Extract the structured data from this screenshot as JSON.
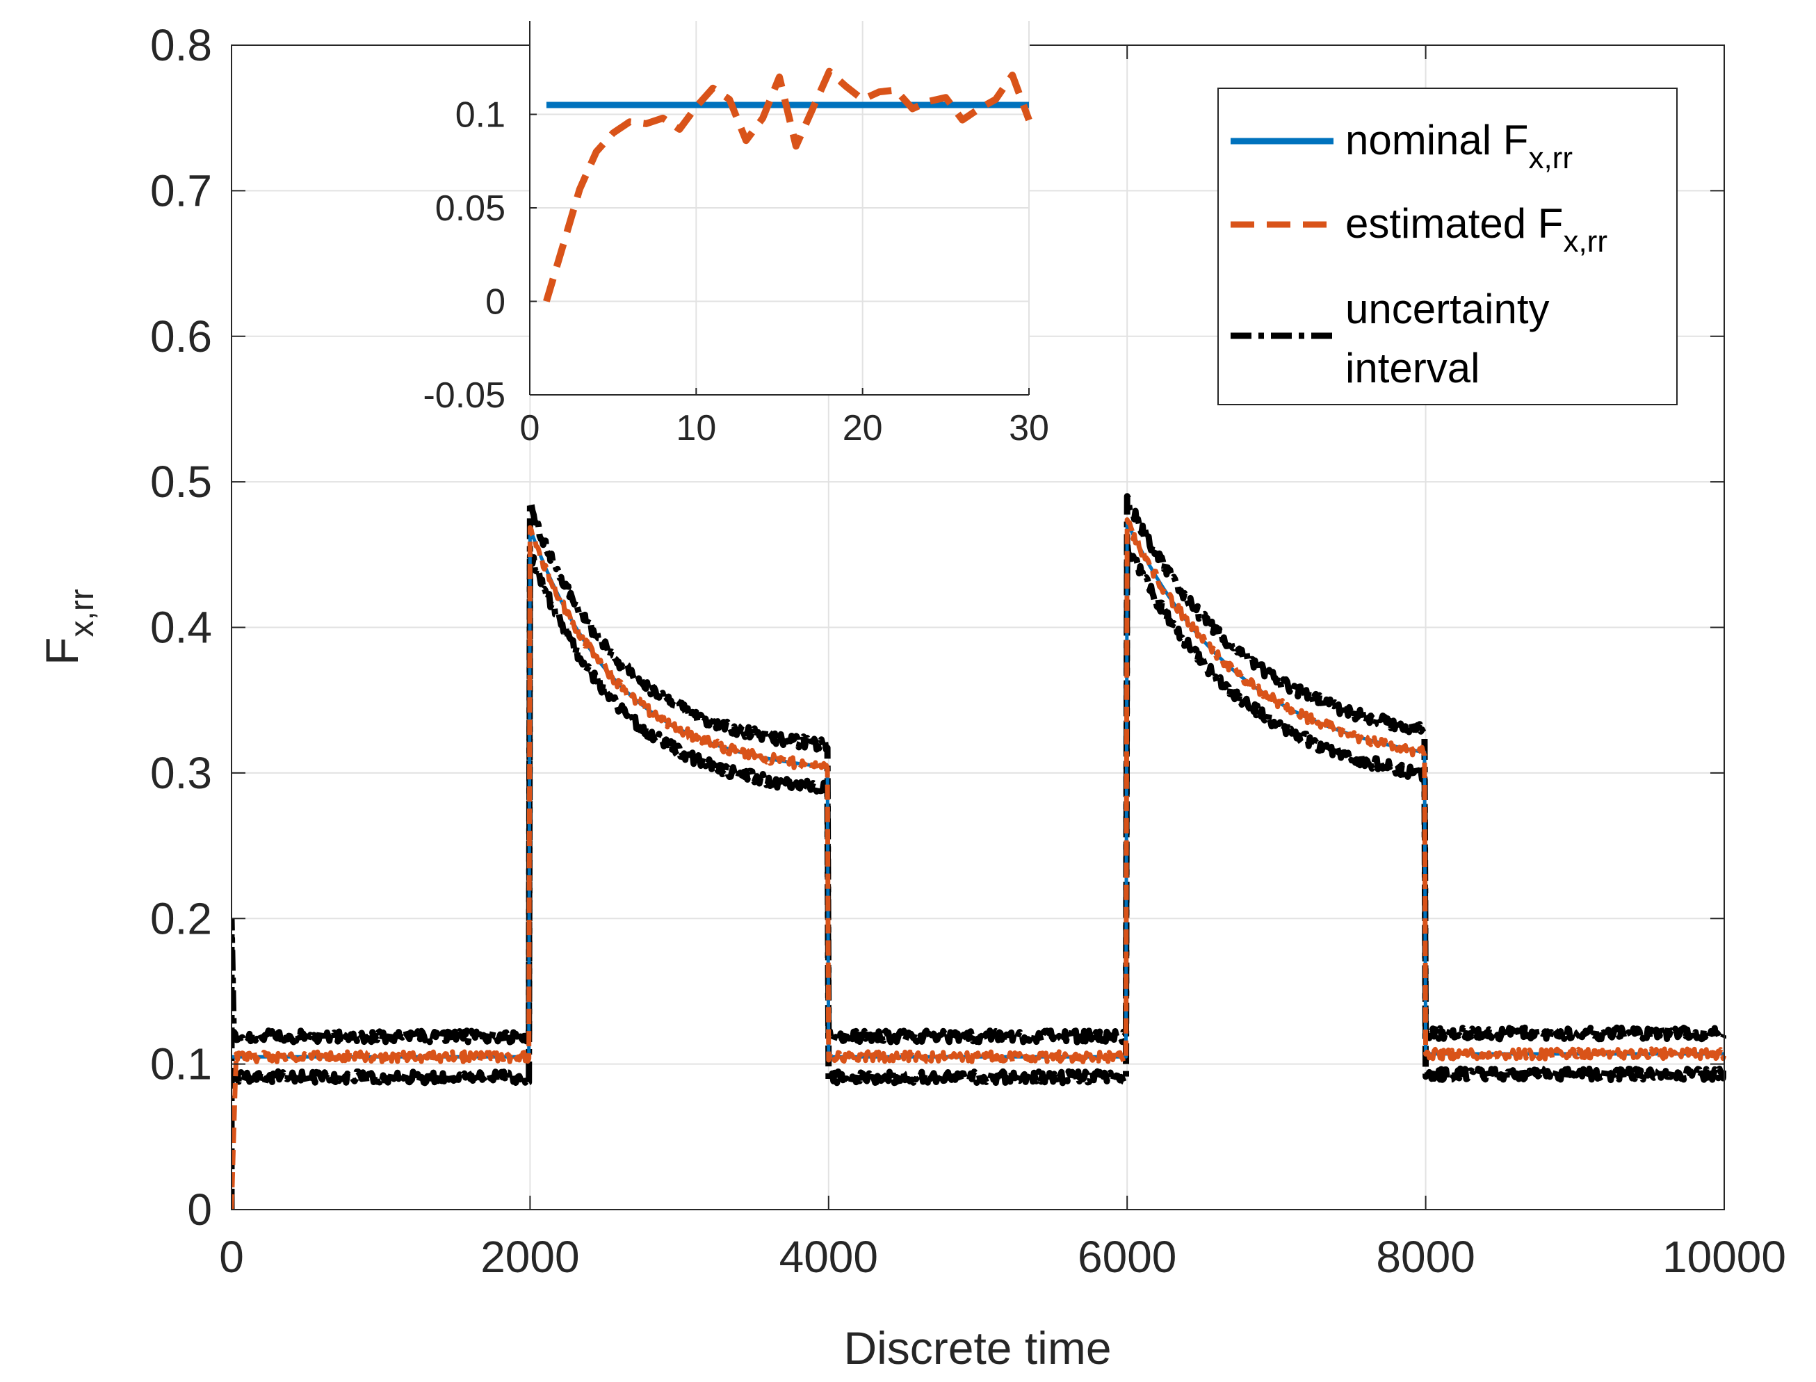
{
  "chart_data": {
    "main": {
      "type": "line",
      "xlabel": "Discrete time",
      "ylabel_main": "F",
      "ylabel_sub": "x,rr",
      "xlim": [
        0,
        10000
      ],
      "ylim": [
        0,
        0.8
      ],
      "grid": true,
      "xticks": [
        0,
        2000,
        4000,
        6000,
        8000,
        10000
      ],
      "xtick_labels": [
        "0",
        "2000",
        "4000",
        "6000",
        "8000",
        "10000"
      ],
      "yticks": [
        0,
        0.1,
        0.2,
        0.3,
        0.4,
        0.5,
        0.6,
        0.7,
        0.8
      ],
      "ytick_labels": [
        "0",
        "0.1",
        "0.2",
        "0.3",
        "0.4",
        "0.5",
        "0.6",
        "0.7",
        "0.8"
      ],
      "model": {
        "baseline": 0.105,
        "segments": [
          {
            "start": 0,
            "end": 2000,
            "kind": "flat",
            "level": 0.105
          },
          {
            "start": 2000,
            "end": 4000,
            "kind": "decay",
            "peak": 0.468,
            "final": 0.298,
            "tau": 600
          },
          {
            "start": 4000,
            "end": 6000,
            "kind": "flat",
            "level": 0.105
          },
          {
            "start": 6000,
            "end": 8000,
            "kind": "decay",
            "peak": 0.472,
            "final": 0.3,
            "tau": 800
          },
          {
            "start": 8000,
            "end": 10000,
            "kind": "flat",
            "level": 0.107
          }
        ],
        "interval_half_width": 0.014,
        "initial_spike": 0.2
      },
      "series": [
        {
          "name": "nominal",
          "color": "#0072BD",
          "style": "solid"
        },
        {
          "name": "estimated",
          "color": "#D95319",
          "style": "dashed"
        },
        {
          "name": "uncertainty interval",
          "color": "#000000",
          "style": "dash-dot"
        }
      ]
    },
    "inset": {
      "type": "line",
      "xlim": [
        0,
        30
      ],
      "ylim": [
        -0.05,
        0.15
      ],
      "xticks": [
        0,
        10,
        20,
        30
      ],
      "xtick_labels": [
        "0",
        "10",
        "20",
        "30"
      ],
      "yticks": [
        -0.05,
        0,
        0.05,
        0.1
      ],
      "ytick_labels": [
        "-0.05",
        "0",
        "0.05",
        "0.1"
      ],
      "grid": true,
      "nominal": {
        "x": [
          1,
          30
        ],
        "y": [
          0.105,
          0.105
        ]
      },
      "estimated": {
        "x": [
          1,
          2,
          3,
          4,
          5,
          6,
          7,
          8,
          9,
          10,
          11,
          12,
          13,
          14,
          15,
          16,
          17,
          18,
          19,
          20,
          21,
          22,
          23,
          24,
          25,
          26,
          27,
          28,
          29,
          30
        ],
        "y": [
          0.0,
          0.03,
          0.06,
          0.08,
          0.09,
          0.096,
          0.095,
          0.098,
          0.092,
          0.104,
          0.114,
          0.108,
          0.086,
          0.098,
          0.12,
          0.083,
          0.103,
          0.123,
          0.115,
          0.108,
          0.112,
          0.113,
          0.103,
          0.107,
          0.109,
          0.097,
          0.103,
          0.108,
          0.121,
          0.097
        ]
      }
    },
    "legend": {
      "position": "top-right",
      "entries": [
        {
          "label_main": "nominal F",
          "label_sub": "x,rr",
          "color": "#0072BD",
          "style": "solid"
        },
        {
          "label_main": "estimated F",
          "label_sub": "x,rr",
          "color": "#D95319",
          "style": "dashed"
        },
        {
          "label_line1": "uncertainty",
          "label_line2": "interval",
          "color": "#000000",
          "style": "dash-dot"
        }
      ]
    }
  }
}
